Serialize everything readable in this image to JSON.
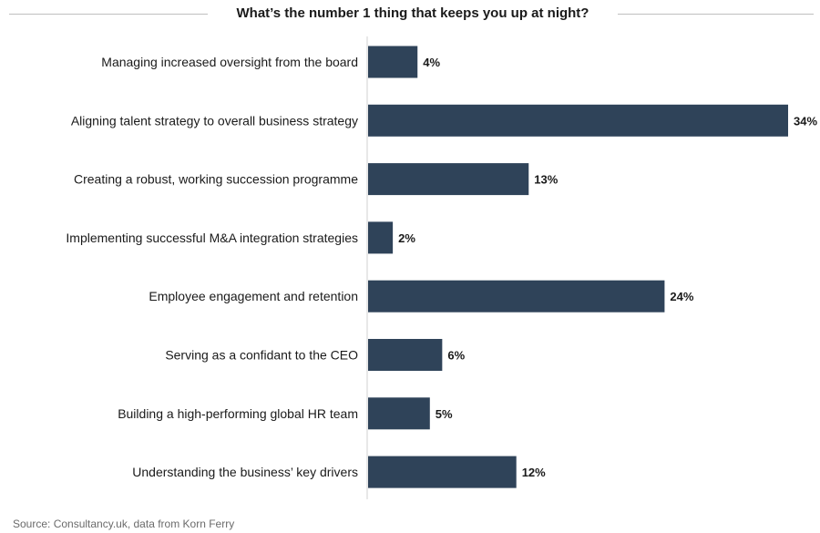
{
  "chart_data": {
    "type": "bar",
    "orientation": "horizontal",
    "title": "What’s the number 1 thing that keeps you up at night?",
    "categories": [
      "Managing increased oversight from the board",
      "Aligning talent strategy to overall business strategy",
      "Creating a robust, working succession programme",
      "Implementing successful M&A integration strategies",
      "Employee engagement and retention",
      "Serving as a confidant to the CEO",
      "Building a high-performing global HR team",
      "Understanding the business’ key drivers"
    ],
    "values": [
      4,
      34,
      13,
      2,
      24,
      6,
      5,
      12
    ],
    "value_labels": [
      "4%",
      "34%",
      "13%",
      "2%",
      "24%",
      "6%",
      "5%",
      "12%"
    ],
    "unit": "%",
    "xlim": [
      0,
      34
    ],
    "grid": false,
    "legend": "none",
    "bar_color": "#2f4359",
    "source": "Source: Consultancy.uk, data from Korn Ferry"
  }
}
